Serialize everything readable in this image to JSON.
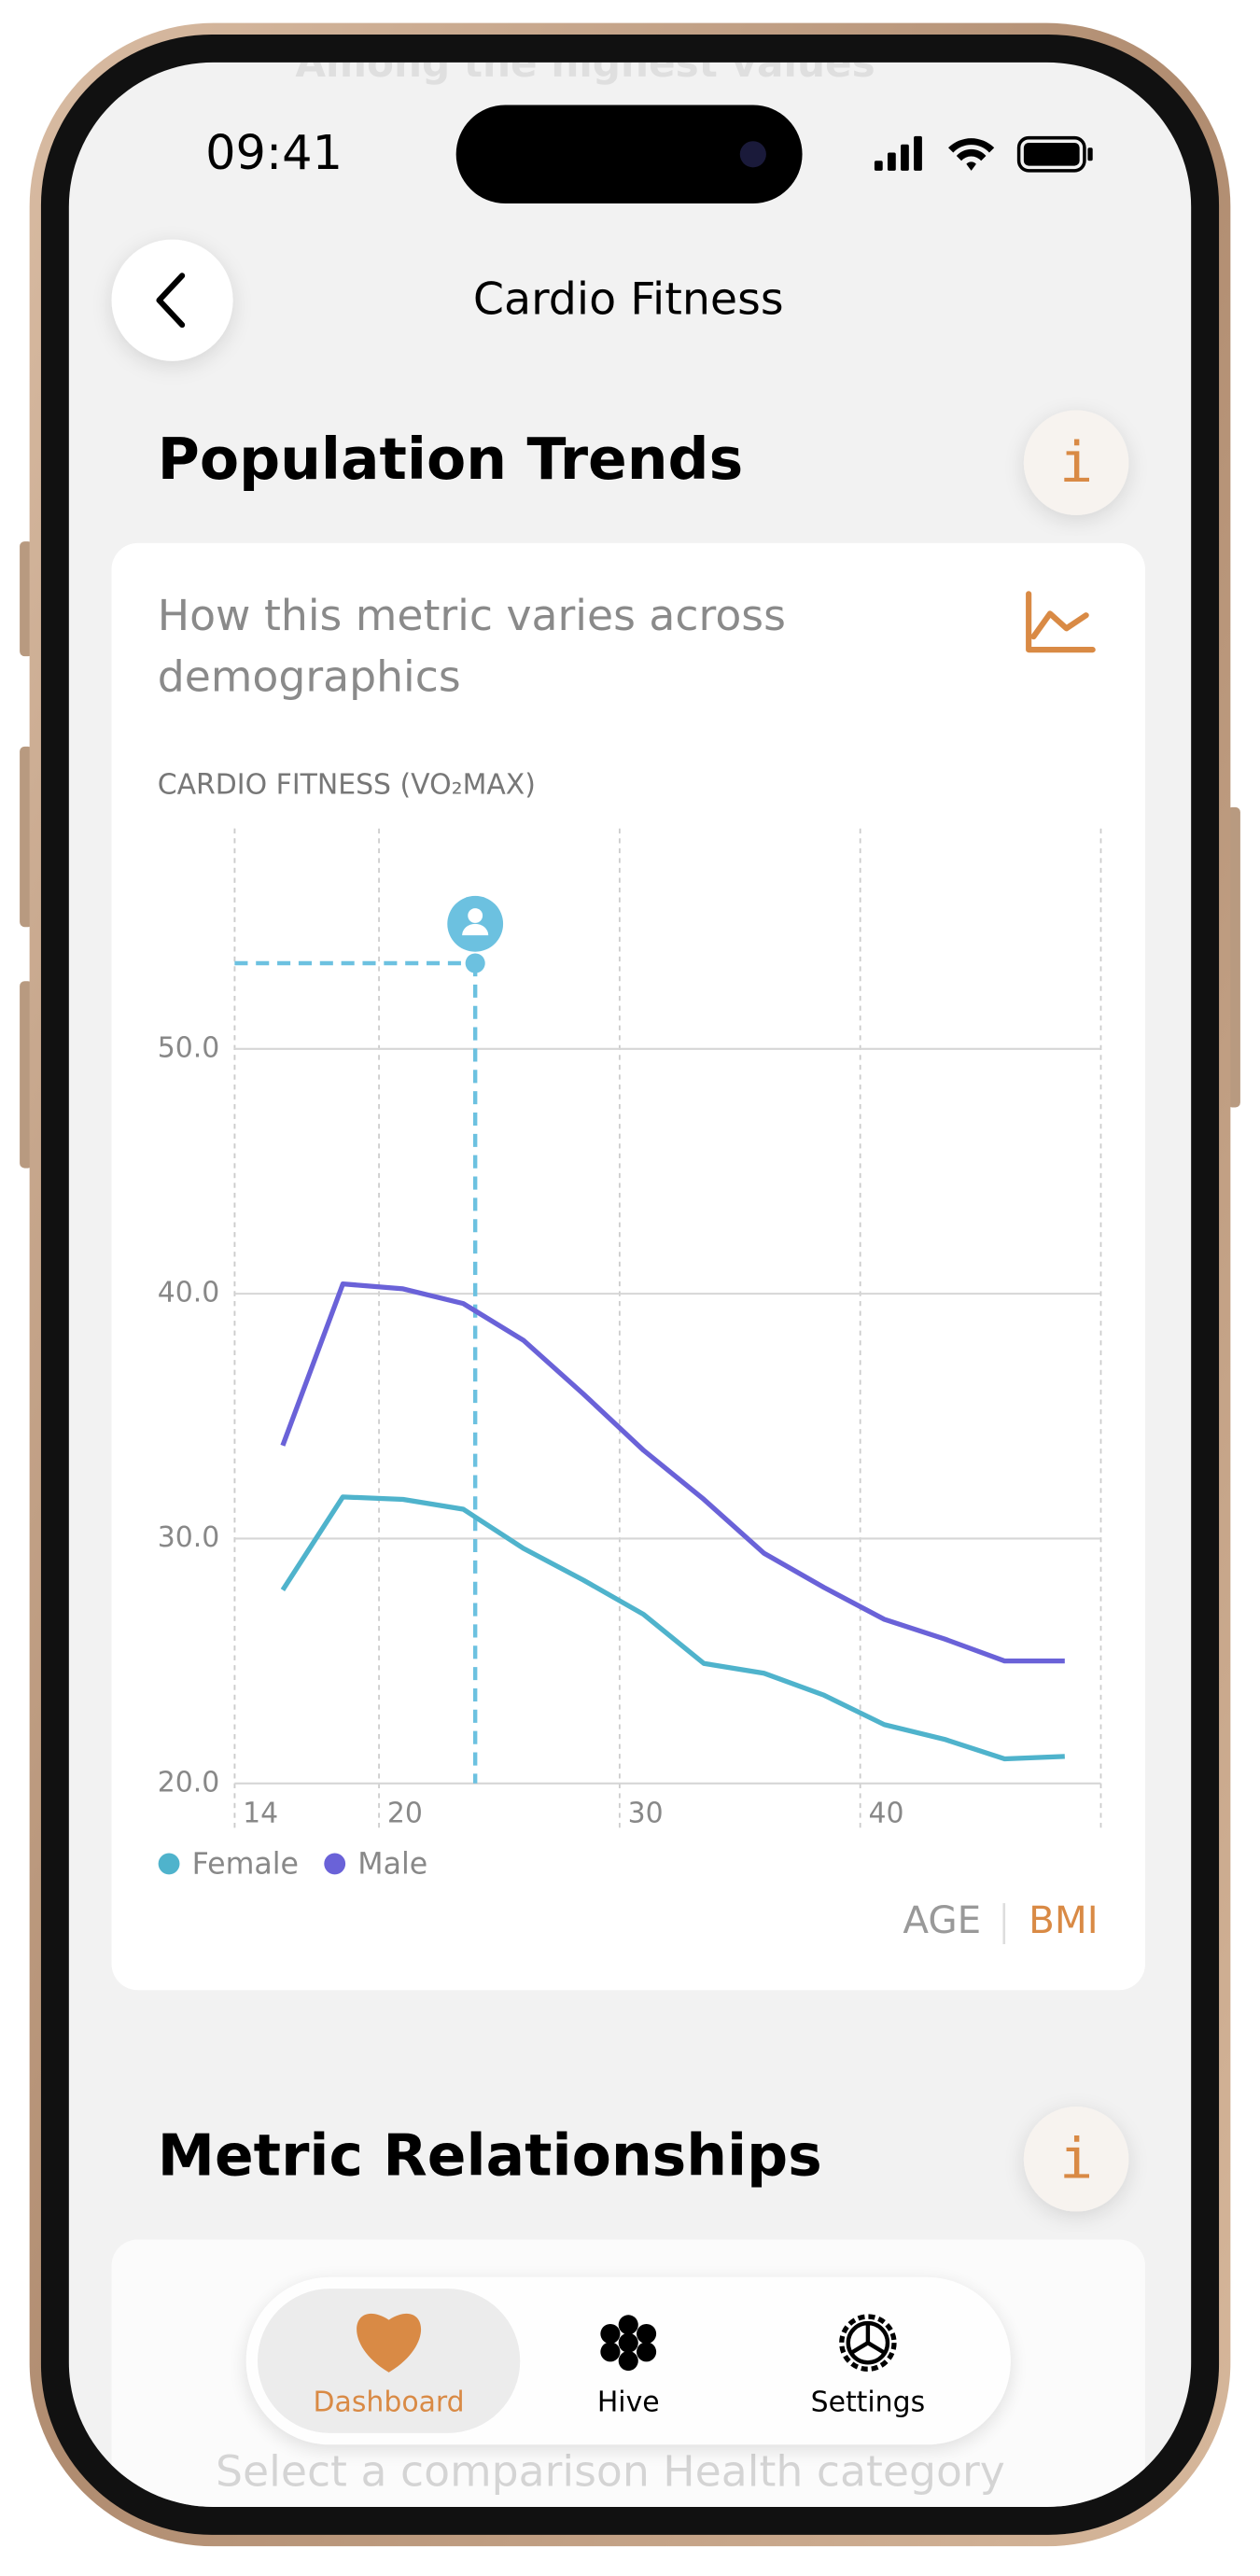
{
  "status_bar": {
    "time": "09:41"
  },
  "background_text": "Among the highest values",
  "header": {
    "title": "Cardio Fitness"
  },
  "population_trends": {
    "title": "Population Trends",
    "info": "i",
    "subtitle_lines": [
      "How this metric varies across",
      "demographics"
    ],
    "toggle": {
      "options": [
        "AGE",
        "BMI"
      ],
      "selected_color": "#d98a45"
    }
  },
  "chart_data": {
    "type": "line",
    "y_label": "CARDIO FITNESS (VO₂MAX)",
    "xlim": [
      14,
      50
    ],
    "xticks": [
      14,
      20,
      30,
      40
    ],
    "ylim": [
      20,
      59
    ],
    "yticks": [
      {
        "value": 20,
        "label": "20.0"
      },
      {
        "value": 30,
        "label": "30.0"
      },
      {
        "value": 40,
        "label": "40.0"
      },
      {
        "value": 50,
        "label": "50.0"
      }
    ],
    "x": [
      16,
      18.5,
      21,
      23.5,
      26,
      28.5,
      31,
      33.5,
      36,
      38.5,
      41,
      43.5,
      46,
      48.5
    ],
    "series": [
      {
        "name": "Female",
        "color": "#4fb3cc",
        "values": [
          27.9,
          31.7,
          31.6,
          31.2,
          29.6,
          28.3,
          26.9,
          24.9,
          24.5,
          23.6,
          22.4,
          21.8,
          21.0,
          21.1
        ]
      },
      {
        "name": "Male",
        "color": "#6a62d8",
        "values": [
          33.8,
          40.4,
          40.2,
          39.6,
          38.1,
          35.9,
          33.6,
          31.6,
          29.4,
          28.0,
          26.7,
          25.9,
          25.0,
          25.0
        ]
      }
    ],
    "marker": {
      "x": 24,
      "y": 53.5,
      "color": "#6cc1e0"
    },
    "grid": true
  },
  "metric_relationships": {
    "title": "Metric Relationships",
    "info": "i"
  },
  "tab_bar": {
    "tabs": [
      "Dashboard",
      "Hive",
      "Settings"
    ],
    "selected": 0,
    "selected_color": "#d98a45"
  },
  "footer_text": "Select a comparison Health category"
}
